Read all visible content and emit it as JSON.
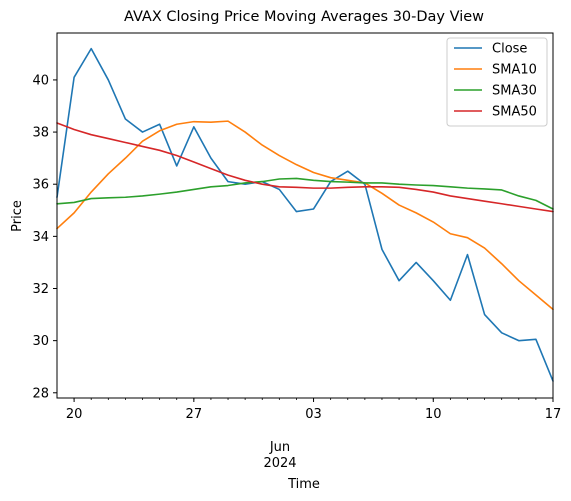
{
  "chart_data": {
    "type": "line",
    "title": "AVAX Closing Price Moving Averages 30-Day View",
    "xlabel": "Time",
    "ylabel": "Price",
    "ylim": [
      27.8,
      41.8
    ],
    "x_range": [
      "2024-05-19",
      "2024-06-17"
    ],
    "x_ticks": [
      {
        "date": "2024-05-20",
        "label": "20"
      },
      {
        "date": "2024-05-27",
        "label": "27"
      },
      {
        "date": "2024-06-03",
        "label": "03"
      },
      {
        "date": "2024-06-10",
        "label": "10"
      },
      {
        "date": "2024-06-17",
        "label": "17"
      }
    ],
    "x_month_label": {
      "month": "Jun",
      "year": "2024"
    },
    "y_ticks": [
      28,
      30,
      32,
      34,
      36,
      38,
      40
    ],
    "legend_position": "top-right",
    "grid": false,
    "x": [
      "2024-05-19",
      "2024-05-20",
      "2024-05-21",
      "2024-05-22",
      "2024-05-23",
      "2024-05-24",
      "2024-05-25",
      "2024-05-26",
      "2024-05-27",
      "2024-05-28",
      "2024-05-29",
      "2024-05-30",
      "2024-05-31",
      "2024-06-01",
      "2024-06-02",
      "2024-06-03",
      "2024-06-04",
      "2024-06-05",
      "2024-06-06",
      "2024-06-07",
      "2024-06-08",
      "2024-06-09",
      "2024-06-10",
      "2024-06-11",
      "2024-06-12",
      "2024-06-13",
      "2024-06-14",
      "2024-06-15",
      "2024-06-16",
      "2024-06-17"
    ],
    "series": [
      {
        "name": "Close",
        "color": "#1f77b4",
        "values": [
          35.5,
          40.1,
          41.2,
          40.0,
          38.5,
          38.0,
          38.3,
          36.7,
          38.2,
          37.0,
          36.1,
          36.0,
          36.1,
          35.8,
          34.95,
          35.05,
          36.1,
          36.5,
          36.0,
          33.5,
          32.3,
          33.0,
          32.3,
          31.55,
          33.3,
          31.0,
          30.3,
          30.0,
          30.05,
          28.45
        ]
      },
      {
        "name": "SMA10",
        "color": "#ff7f0e",
        "values": [
          34.3,
          34.9,
          35.7,
          36.4,
          37.0,
          37.65,
          38.05,
          38.3,
          38.4,
          38.38,
          38.42,
          38.0,
          37.5,
          37.1,
          36.75,
          36.45,
          36.25,
          36.15,
          36.05,
          35.65,
          35.2,
          34.9,
          34.55,
          34.1,
          33.95,
          33.55,
          32.95,
          32.3,
          31.75,
          31.2
        ]
      },
      {
        "name": "SMA30",
        "color": "#2ca02c",
        "values": [
          35.25,
          35.3,
          35.45,
          35.48,
          35.5,
          35.55,
          35.62,
          35.7,
          35.8,
          35.9,
          35.95,
          36.05,
          36.1,
          36.2,
          36.22,
          36.15,
          36.1,
          36.08,
          36.05,
          36.05,
          36.0,
          35.97,
          35.95,
          35.9,
          35.85,
          35.82,
          35.78,
          35.55,
          35.38,
          35.05
        ]
      },
      {
        "name": "SMA50",
        "color": "#d62728",
        "values": [
          38.35,
          38.1,
          37.9,
          37.75,
          37.6,
          37.45,
          37.3,
          37.1,
          36.85,
          36.6,
          36.35,
          36.15,
          36.0,
          35.9,
          35.88,
          35.85,
          35.85,
          35.88,
          35.9,
          35.9,
          35.88,
          35.8,
          35.7,
          35.55,
          35.45,
          35.35,
          35.25,
          35.15,
          35.05,
          34.95
        ]
      }
    ]
  }
}
